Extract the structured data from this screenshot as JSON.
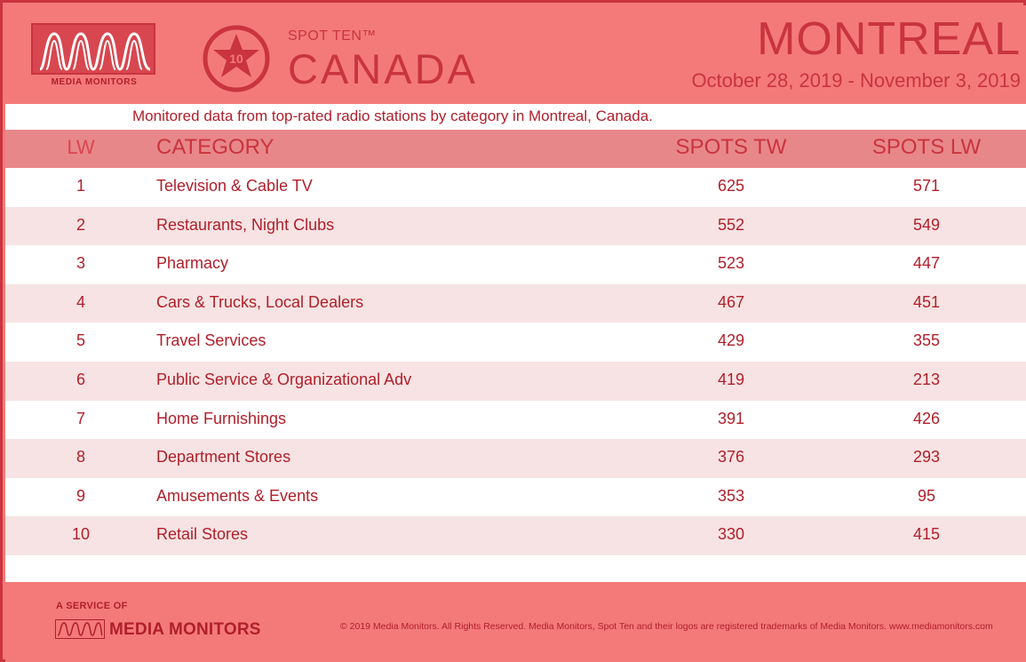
{
  "brand": {
    "logo_text": "MEDIA MONITORS",
    "program_tag": "SPOT TEN™",
    "badge_number": "10",
    "country": "CANADA",
    "accent_color": "#c9343e",
    "background_color": "#f47a7a"
  },
  "header": {
    "city": "MONTREAL",
    "date_range": "October 28, 2019 - November 3, 2019"
  },
  "subtitle": "Monitored data from top-rated radio stations by category in Montreal, Canada.",
  "table": {
    "columns": {
      "lw": "LW",
      "category": "CATEGORY",
      "spots_tw": "SPOTS TW",
      "spots_lw": "SPOTS LW"
    },
    "rows": [
      {
        "lw": "1",
        "category": "Television & Cable TV",
        "spots_tw": "625",
        "spots_lw": "571"
      },
      {
        "lw": "2",
        "category": "Restaurants, Night Clubs",
        "spots_tw": "552",
        "spots_lw": "549"
      },
      {
        "lw": "3",
        "category": "Pharmacy",
        "spots_tw": "523",
        "spots_lw": "447"
      },
      {
        "lw": "4",
        "category": "Cars & Trucks, Local Dealers",
        "spots_tw": "467",
        "spots_lw": "451"
      },
      {
        "lw": "5",
        "category": "Travel Services",
        "spots_tw": "429",
        "spots_lw": "355"
      },
      {
        "lw": "6",
        "category": "Public Service & Organizational Adv",
        "spots_tw": "419",
        "spots_lw": "213"
      },
      {
        "lw": "7",
        "category": "Home Furnishings",
        "spots_tw": "391",
        "spots_lw": "426"
      },
      {
        "lw": "8",
        "category": "Department Stores",
        "spots_tw": "376",
        "spots_lw": "293"
      },
      {
        "lw": "9",
        "category": "Amusements & Events",
        "spots_tw": "353",
        "spots_lw": "95"
      },
      {
        "lw": "10",
        "category": "Retail Stores",
        "spots_tw": "330",
        "spots_lw": "415"
      }
    ]
  },
  "footer": {
    "service_label": "A SERVICE OF",
    "logo_text": "MEDIA MONITORS",
    "copyright": "© 2019 Media Monitors. All Rights Reserved. Media Monitors, Spot Ten and their logos are registered trademarks of Media Monitors. www.mediamonitors.com"
  }
}
